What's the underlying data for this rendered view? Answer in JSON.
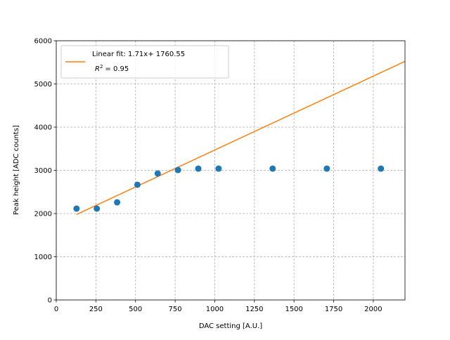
{
  "chart_data": {
    "type": "scatter",
    "xlabel": "DAC setting [A.U.]",
    "ylabel": "Peak height [ADC counts]",
    "xlim": [
      0,
      2200
    ],
    "ylim": [
      0,
      6000
    ],
    "xticks": [
      0,
      250,
      500,
      750,
      1000,
      1250,
      1500,
      1750,
      2000
    ],
    "yticks": [
      0,
      1000,
      2000,
      3000,
      4000,
      5000,
      6000
    ],
    "grid": true,
    "legend_placement": "top-left",
    "points": {
      "x": [
        128,
        256,
        384,
        512,
        640,
        768,
        896,
        1024,
        1365,
        1707,
        2048
      ],
      "y": [
        2114,
        2114,
        2260,
        2667,
        2927,
        3008,
        3040,
        3040,
        3040,
        3040,
        3040
      ],
      "color": "#1f77b4"
    },
    "fit": {
      "slope": 1.71,
      "intercept": 1760.55,
      "x_range": [
        128,
        2200
      ],
      "color": "#ff7f0e",
      "legend_line1": "Linear fit: 1.71x+ 1760.55",
      "legend_r2_value": "= 0.95"
    }
  }
}
